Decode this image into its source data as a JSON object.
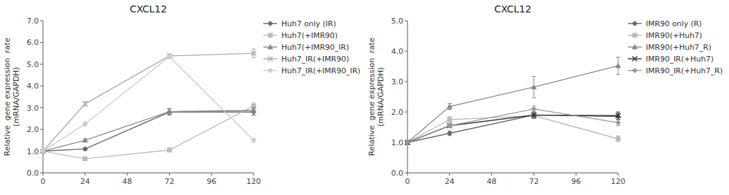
{
  "chart_data": [
    {
      "type": "line",
      "title": "CXCL12",
      "y_label": "Relative  gene expression  rate\n(mRNA/GAPDH)",
      "x": [
        0,
        24,
        72,
        120
      ],
      "xlim": [
        0,
        120
      ],
      "xticks": [
        0,
        24,
        48,
        72,
        96,
        120
      ],
      "ylim": [
        0,
        7
      ],
      "yticks": [
        {
          "value": 0,
          "label": "0.0"
        },
        {
          "value": 1,
          "label": "1.0"
        },
        {
          "value": 2,
          "label": "2.0"
        },
        {
          "value": 3,
          "label": "3.0"
        },
        {
          "value": 4,
          "label": "4.0"
        },
        {
          "value": 5,
          "label": "5.0"
        },
        {
          "value": 6,
          "label": "6.0"
        },
        {
          "value": 7,
          "label": "7.0"
        }
      ],
      "grid": false,
      "legend": "right",
      "series": [
        {
          "name": "Huh7 only (IR)",
          "color": "#666666",
          "marker": "diamond",
          "values": [
            1.0,
            1.1,
            2.8,
            2.8
          ],
          "errors": [
            0.0,
            0.06,
            0.14,
            0.15
          ]
        },
        {
          "name": "Huh7(+IMR90)",
          "color": "#bbbbbb",
          "marker": "square",
          "values": [
            1.0,
            0.65,
            1.05,
            3.08
          ],
          "errors": [
            0.0,
            0.04,
            0.08,
            0.14
          ]
        },
        {
          "name": "Huh7(+IMR90_IR)",
          "color": "#888888",
          "marker": "triangle",
          "values": [
            1.0,
            1.5,
            2.82,
            2.88
          ],
          "errors": [
            0.0,
            0.07,
            0.14,
            0.12
          ]
        },
        {
          "name": "Huh7_IR(+IMR90)",
          "color": "#aaaaaa",
          "marker": "x",
          "values": [
            1.0,
            3.18,
            5.38,
            5.5
          ],
          "errors": [
            0.0,
            0.1,
            0.1,
            0.2
          ]
        },
        {
          "name": "Huh7_IR(+IMR90_IR)",
          "color": "#cccccc",
          "marker": "diamond",
          "values": [
            1.0,
            2.25,
            5.35,
            1.5
          ],
          "errors": [
            0.0,
            0.1,
            0.1,
            0.08
          ]
        }
      ]
    },
    {
      "type": "line",
      "title": "CXCL12",
      "y_label": "Relative  gene expression  rate\n(mRNA/GAPDH)",
      "x": [
        0,
        24,
        72,
        120
      ],
      "xlim": [
        0,
        120
      ],
      "xticks": [
        0,
        24,
        48,
        72,
        96,
        120
      ],
      "ylim": [
        0,
        5
      ],
      "yticks": [
        {
          "value": 0,
          "label": "0.0"
        },
        {
          "value": 1,
          "label": "1.0"
        },
        {
          "value": 2,
          "label": "2.0"
        },
        {
          "value": 3,
          "label": "3.0"
        },
        {
          "value": 4,
          "label": "4.0"
        },
        {
          "value": 5,
          "label": "5.0"
        }
      ],
      "grid": false,
      "legend": "right",
      "series": [
        {
          "name": "IMR90 only (R)",
          "color": "#666666",
          "marker": "diamond",
          "values": [
            1.0,
            1.3,
            1.9,
            1.85
          ],
          "errors": [
            0.0,
            0.07,
            0.1,
            0.1
          ]
        },
        {
          "name": "IMR90(+Huh7)",
          "color": "#bbbbbb",
          "marker": "square",
          "values": [
            1.0,
            1.75,
            1.88,
            1.12
          ],
          "errors": [
            0.0,
            0.1,
            0.08,
            0.1
          ]
        },
        {
          "name": "IMR90(+Huh7_R)",
          "color": "#888888",
          "marker": "triangle",
          "values": [
            1.0,
            2.18,
            2.82,
            3.52
          ],
          "errors": [
            0.0,
            0.1,
            0.35,
            0.28
          ]
        },
        {
          "name": "IMR90_IR(+Huh7)",
          "color": "#333333",
          "marker": "x",
          "values": [
            1.0,
            1.55,
            1.9,
            1.88
          ],
          "errors": [
            0.0,
            0.05,
            0.1,
            0.12
          ]
        },
        {
          "name": "IMR90_IR(+Huh7_R)",
          "color": "#999999",
          "marker": "diamond",
          "values": [
            1.0,
            1.55,
            2.1,
            1.65
          ],
          "errors": [
            0.0,
            0.06,
            0.1,
            0.1
          ]
        }
      ]
    }
  ]
}
